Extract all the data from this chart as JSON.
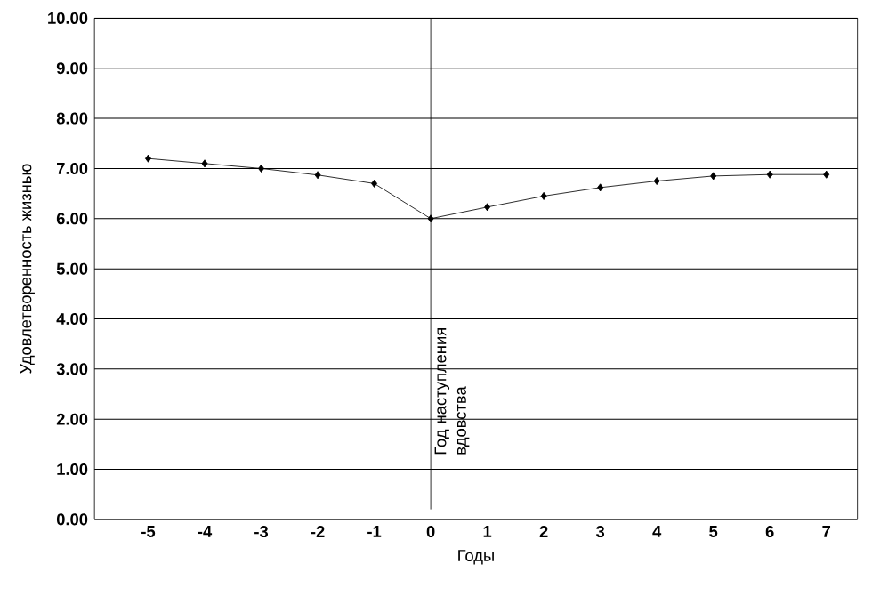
{
  "chart_data": {
    "type": "line",
    "xlabel": "Годы",
    "ylabel": "Удовлетворенность жизнью",
    "x": [
      -5,
      -4,
      -3,
      -2,
      -1,
      0,
      1,
      2,
      3,
      4,
      5,
      6,
      7
    ],
    "values": [
      7.2,
      7.1,
      7.0,
      6.87,
      6.7,
      6.0,
      6.23,
      6.45,
      6.62,
      6.75,
      6.85,
      6.88,
      6.88
    ],
    "color": "#000000",
    "marker": "diamond",
    "line_style": "solid",
    "grid": "y",
    "xlim": [
      -5.95,
      7.55
    ],
    "xticks": [
      -5,
      -4,
      -3,
      -2,
      -1,
      0,
      1,
      2,
      3,
      4,
      5,
      6,
      7
    ],
    "ylim": [
      0,
      10
    ],
    "yticks": [
      {
        "value": 0,
        "label": "0.00"
      },
      {
        "value": 1,
        "label": "1.00"
      },
      {
        "value": 2,
        "label": "2.00"
      },
      {
        "value": 3,
        "label": "3.00"
      },
      {
        "value": 4,
        "label": "4.00"
      },
      {
        "value": 5,
        "label": "5.00"
      },
      {
        "value": 6,
        "label": "6.00"
      },
      {
        "value": 7,
        "label": "7.00"
      },
      {
        "value": 8,
        "label": "8.00"
      },
      {
        "value": 9,
        "label": "9.00"
      },
      {
        "value": 10,
        "label": "10.00"
      }
    ],
    "ref_lines": [
      {
        "axis": "x",
        "value": 0,
        "label": "Год наступления вдовства"
      }
    ]
  }
}
